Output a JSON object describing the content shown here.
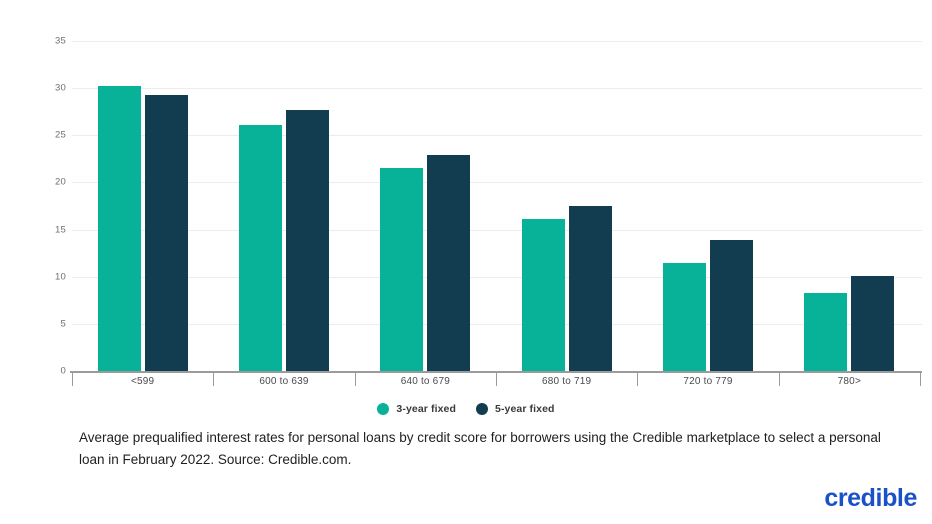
{
  "chart_data": {
    "type": "bar",
    "title": "",
    "categories": [
      "<599",
      "600 to 639",
      "640 to 679",
      "680 to 719",
      "720 to 779",
      "780>"
    ],
    "series": [
      {
        "name": "3-year fixed",
        "color": "#07b299",
        "values": [
          30.2,
          26.1,
          21.5,
          16.1,
          11.5,
          8.3
        ]
      },
      {
        "name": "5-year fixed",
        "color": "#123d50",
        "values": [
          29.3,
          27.7,
          22.9,
          17.5,
          13.9,
          10.1
        ]
      }
    ],
    "xlabel": "",
    "ylabel": "",
    "ylim": [
      0,
      35
    ],
    "yticks": [
      0,
      5,
      10,
      15,
      20,
      25,
      30,
      35
    ],
    "grid": true,
    "legend_position": "bottom-center",
    "colors": {
      "gridline": "#ececec",
      "axis_line": "#9b9b9b",
      "y_tick_label": "#6e6e6e",
      "x_tick_label": "#4a4a4a"
    }
  },
  "caption": {
    "text": "Average prequalified interest rates for personal loans by credit score for borrowers using the Credible marketplace to select a personal loan in February 2022. Source: Credible.com."
  },
  "branding": {
    "logo_text": "credible",
    "logo_color": "#1a51c9"
  }
}
